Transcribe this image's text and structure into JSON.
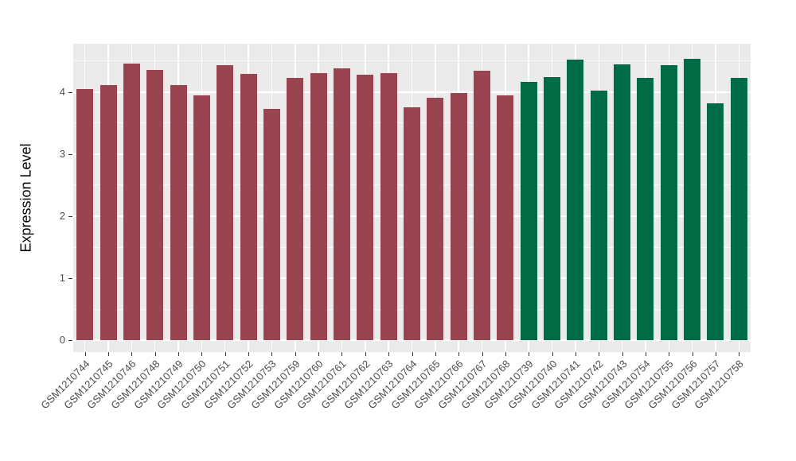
{
  "chart_data": {
    "type": "bar",
    "title": "",
    "xlabel": "",
    "ylabel": "Expression Level",
    "legend": "none",
    "grid": "major+minor",
    "categories": [
      "GSM1210744",
      "GSM1210745",
      "GSM1210746",
      "GSM1210748",
      "GSM1210749",
      "GSM1210750",
      "GSM1210751",
      "GSM1210752",
      "GSM1210753",
      "GSM1210759",
      "GSM1210760",
      "GSM1210761",
      "GSM1210762",
      "GSM1210763",
      "GSM1210764",
      "GSM1210765",
      "GSM1210766",
      "GSM1210767",
      "GSM1210768",
      "GSM1210739",
      "GSM1210740",
      "GSM1210741",
      "GSM1210742",
      "GSM1210743",
      "GSM1210754",
      "GSM1210755",
      "GSM1210756",
      "GSM1210757",
      "GSM1210758"
    ],
    "values": [
      4.05,
      4.12,
      4.46,
      4.36,
      4.12,
      3.95,
      4.44,
      4.29,
      3.73,
      4.23,
      4.31,
      4.38,
      4.28,
      4.3,
      3.76,
      3.91,
      3.98,
      4.35,
      3.95,
      4.17,
      4.24,
      4.52,
      4.03,
      4.45,
      4.23,
      4.43,
      4.54,
      3.82,
      4.23
    ],
    "bar_groups": [
      0,
      0,
      0,
      0,
      0,
      0,
      0,
      0,
      0,
      0,
      0,
      0,
      0,
      0,
      0,
      0,
      0,
      0,
      0,
      1,
      1,
      1,
      1,
      1,
      1,
      1,
      1,
      1,
      1
    ],
    "group_names": [
      "group-red",
      "group-green"
    ],
    "group_colors": [
      "#9b4451",
      "#006b44"
    ],
    "yticks": [
      0,
      1,
      2,
      3,
      4
    ],
    "yticks_minor": [
      0.5,
      1.5,
      2.5,
      3.5,
      4.5
    ],
    "ylim": [
      -0.19,
      4.78
    ],
    "theme": {
      "figure_background": "#ffffff",
      "panel_background": "#ebebeb",
      "gridline_color": "#ffffff",
      "axis_text_color": "#4d4d4d",
      "axis_title_color": "#000000",
      "tick_mark_color": "#333333"
    }
  }
}
